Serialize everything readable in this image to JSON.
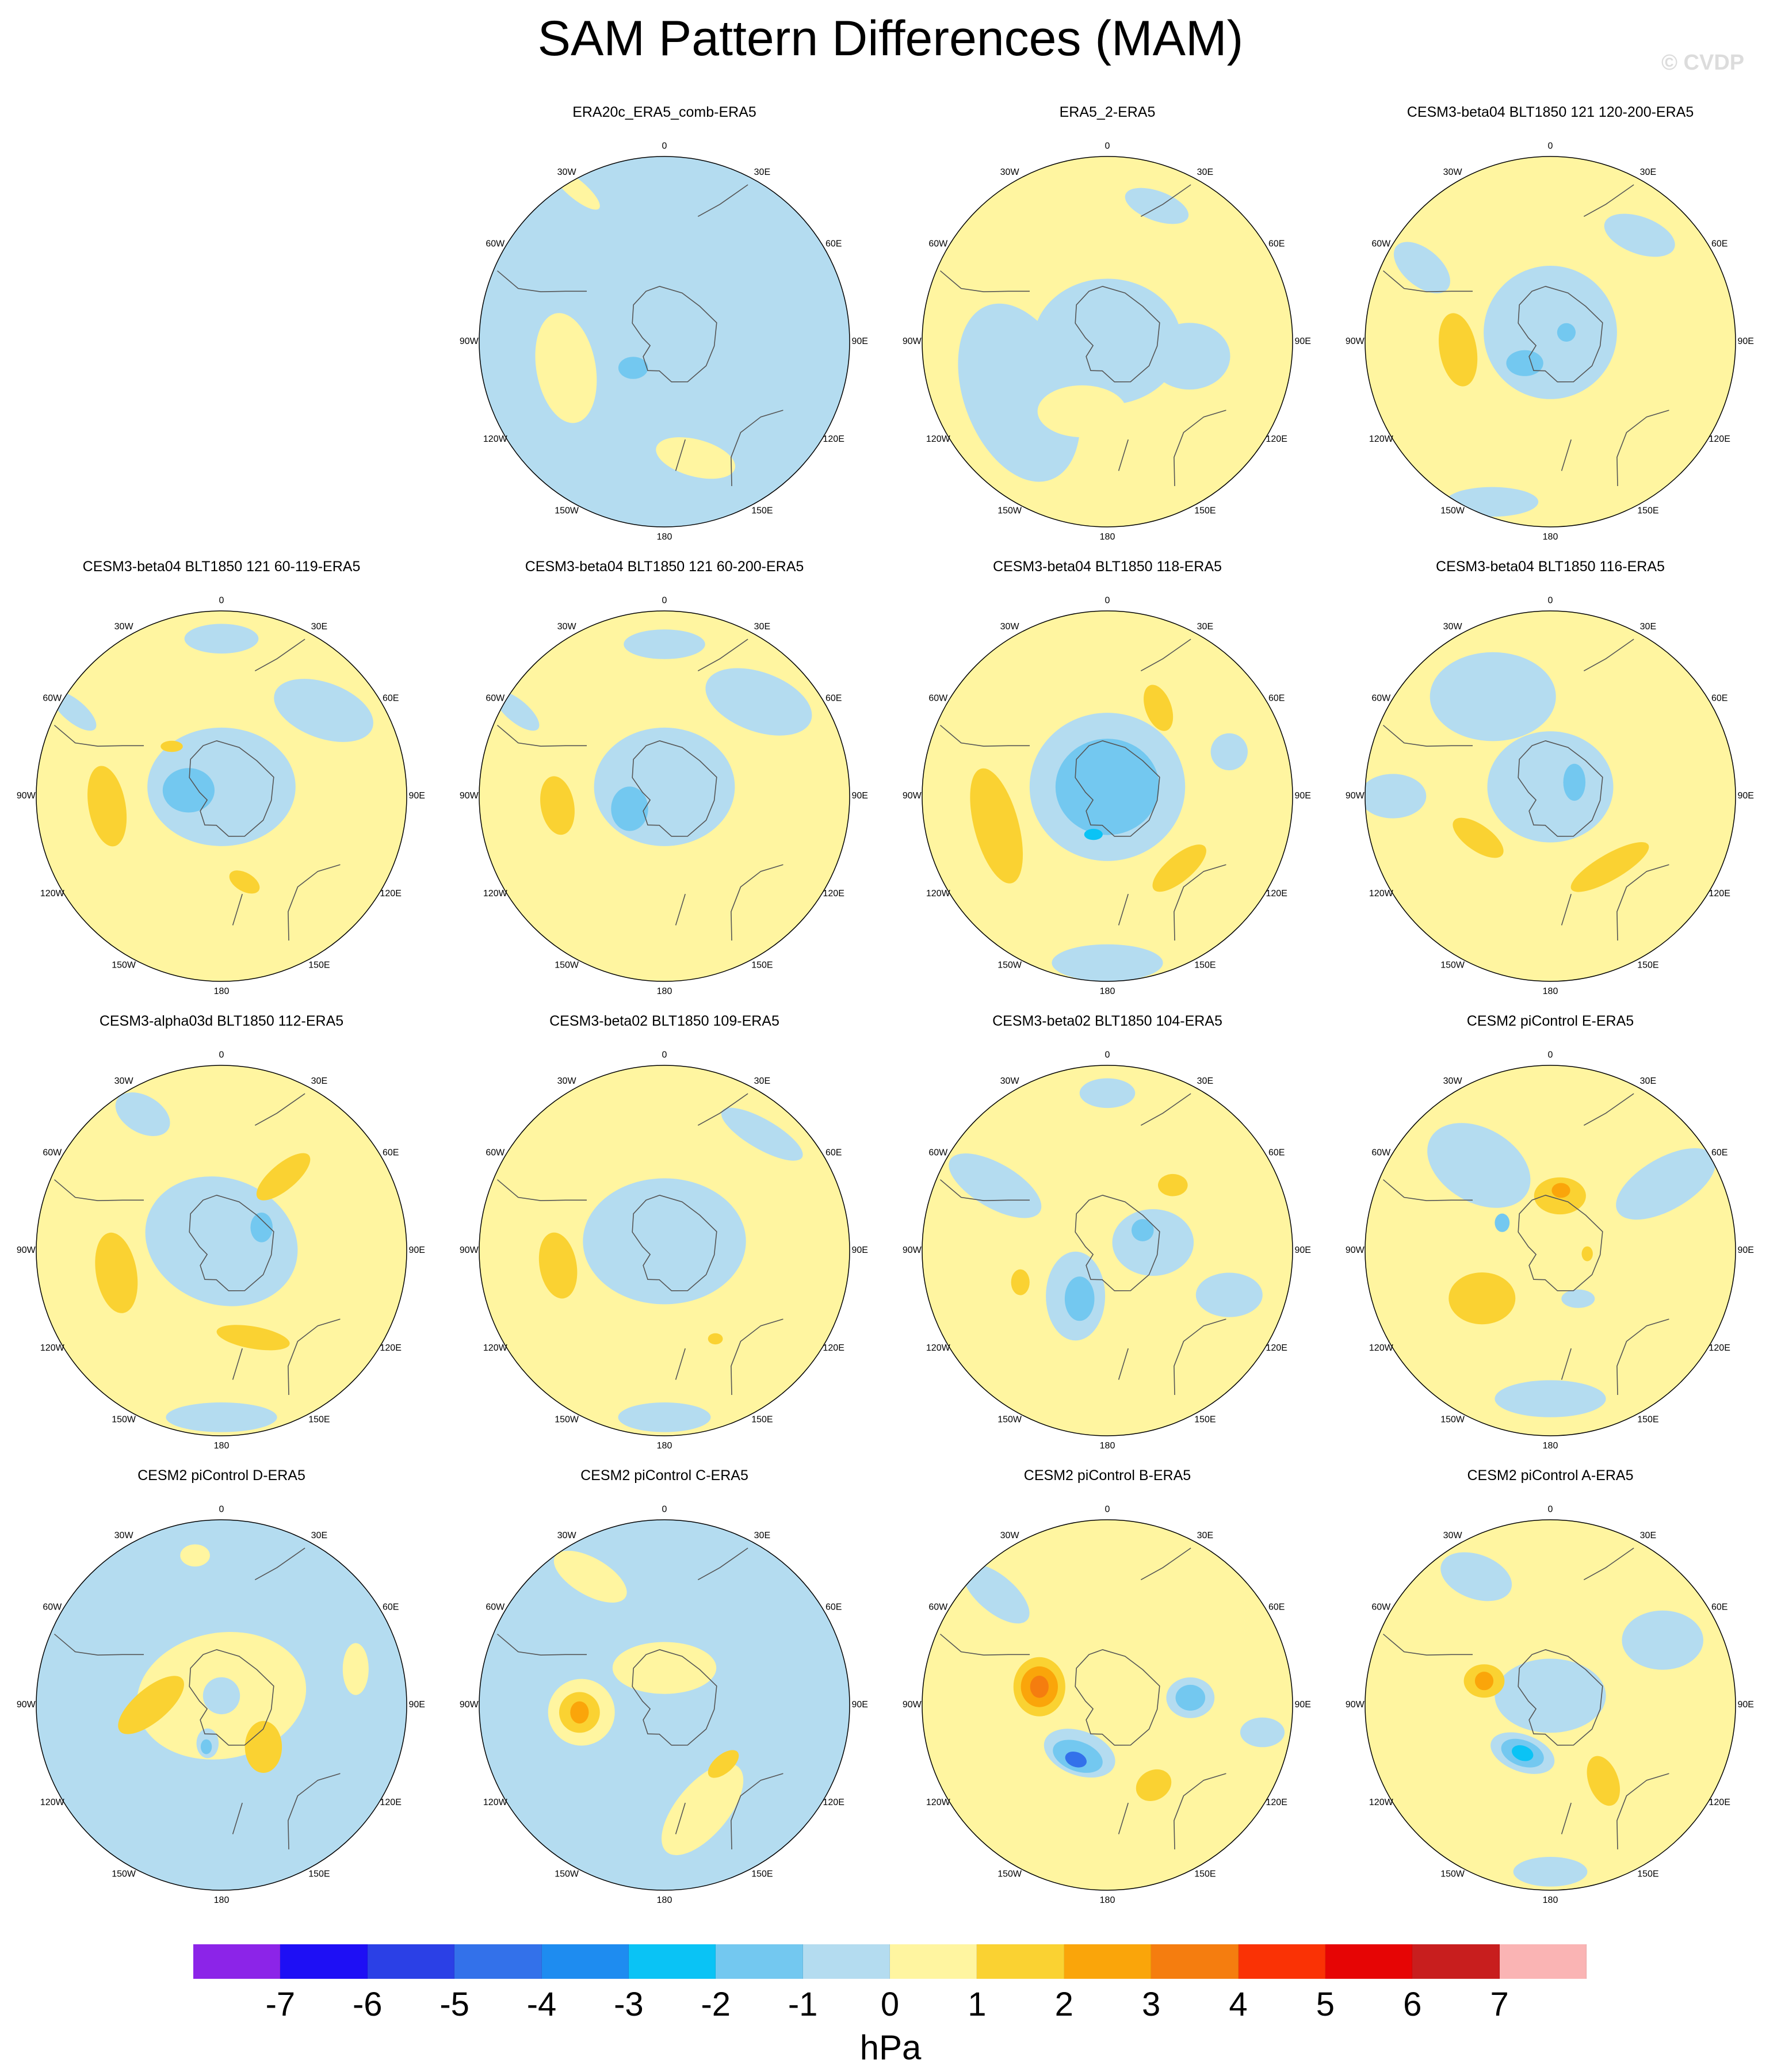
{
  "title": "SAM Pattern Differences (MAM)",
  "watermark": "© CVDP",
  "units": "hPa",
  "longitude_labels": [
    "0",
    "30E",
    "60E",
    "90E",
    "120E",
    "150E",
    "180",
    "150W",
    "120W",
    "90W",
    "60W",
    "30W"
  ],
  "colorbar": {
    "colors": [
      "#8C24E8",
      "#1E0FF5",
      "#2B40E6",
      "#3371EA",
      "#1E8CF0",
      "#0AC3F5",
      "#73C8F0",
      "#B4DCF0",
      "#FFF5A0",
      "#FAD232",
      "#FAA50A",
      "#F57D0F",
      "#FA3205",
      "#E60505",
      "#C81E1E",
      "#FAB4B4"
    ],
    "ticks": [
      "-7",
      "-6",
      "-5",
      "-4",
      "-3",
      "-2",
      "-1",
      "0",
      "1",
      "2",
      "3",
      "4",
      "5",
      "6",
      "7"
    ]
  },
  "panels": [
    {
      "row": 0,
      "col": 1,
      "title": "ERA20c_ERA5_comb-ERA5",
      "background": "#B4DCF0",
      "blobs": [
        {
          "color": "#FFF5A0",
          "lon": 255,
          "r": 0.55,
          "a": 0.16,
          "b": 0.3,
          "rot": -10
        },
        {
          "color": "#FFF5A0",
          "lon": 165,
          "r": 0.65,
          "a": 0.22,
          "b": 0.1,
          "rot": 15
        },
        {
          "color": "#FFF5A0",
          "lon": 330,
          "r": 0.95,
          "a": 0.16,
          "b": 0.05,
          "rot": 40
        },
        {
          "color": "#73C8F0",
          "lon": 230,
          "r": 0.22,
          "a": 0.08,
          "b": 0.06,
          "rot": 0
        }
      ]
    },
    {
      "row": 0,
      "col": 2,
      "title": "ERA5_2-ERA5",
      "background": "#FFF5A0",
      "blobs": [
        {
          "color": "#B4DCF0",
          "lon": 0,
          "r": 0.0,
          "a": 0.4,
          "b": 0.34,
          "rot": 0
        },
        {
          "color": "#B4DCF0",
          "lon": 240,
          "r": 0.55,
          "a": 0.3,
          "b": 0.5,
          "rot": -20
        },
        {
          "color": "#B4DCF0",
          "lon": 100,
          "r": 0.45,
          "a": 0.22,
          "b": 0.18,
          "rot": 0
        },
        {
          "color": "#FFF5A0",
          "lon": 200,
          "r": 0.4,
          "a": 0.24,
          "b": 0.14,
          "rot": 0
        },
        {
          "color": "#B4DCF0",
          "lon": 20,
          "r": 0.78,
          "a": 0.18,
          "b": 0.08,
          "rot": 20
        }
      ]
    },
    {
      "row": 0,
      "col": 3,
      "title": "CESM3-beta04 BLT1850 121 120-200-ERA5",
      "background": "#FFF5A0",
      "blobs": [
        {
          "color": "#B4DCF0",
          "lon": 0,
          "r": 0.05,
          "a": 0.36,
          "b": 0.36,
          "rot": 0
        },
        {
          "color": "#73C8F0",
          "lon": 230,
          "r": 0.18,
          "a": 0.1,
          "b": 0.07,
          "rot": 0
        },
        {
          "color": "#73C8F0",
          "lon": 60,
          "r": 0.1,
          "a": 0.05,
          "b": 0.05,
          "rot": 0
        },
        {
          "color": "#FAD232",
          "lon": 265,
          "r": 0.5,
          "a": 0.1,
          "b": 0.2,
          "rot": -10
        },
        {
          "color": "#B4DCF0",
          "lon": 200,
          "r": 0.92,
          "a": 0.25,
          "b": 0.08,
          "rot": 0
        },
        {
          "color": "#B4DCF0",
          "lon": 40,
          "r": 0.75,
          "a": 0.2,
          "b": 0.1,
          "rot": 20
        },
        {
          "color": "#B4DCF0",
          "lon": 300,
          "r": 0.8,
          "a": 0.18,
          "b": 0.1,
          "rot": 40
        }
      ]
    },
    {
      "row": 1,
      "col": 0,
      "title": "CESM3-beta04 BLT1850 121 60-119-ERA5",
      "background": "#FFF5A0",
      "blobs": [
        {
          "color": "#B4DCF0",
          "lon": 0,
          "r": 0.05,
          "a": 0.4,
          "b": 0.32,
          "rot": 0
        },
        {
          "color": "#73C8F0",
          "lon": 280,
          "r": 0.18,
          "a": 0.14,
          "b": 0.12,
          "rot": 0
        },
        {
          "color": "#FAD232",
          "lon": 265,
          "r": 0.62,
          "a": 0.1,
          "b": 0.22,
          "rot": -10
        },
        {
          "color": "#FAD232",
          "lon": 165,
          "r": 0.48,
          "a": 0.09,
          "b": 0.05,
          "rot": 30
        },
        {
          "color": "#FAD232",
          "lon": 315,
          "r": 0.38,
          "a": 0.06,
          "b": 0.03,
          "rot": 0
        },
        {
          "color": "#B4DCF0",
          "lon": 50,
          "r": 0.72,
          "a": 0.28,
          "b": 0.15,
          "rot": 20
        },
        {
          "color": "#B4DCF0",
          "lon": 0,
          "r": 0.85,
          "a": 0.2,
          "b": 0.08,
          "rot": 0
        },
        {
          "color": "#B4DCF0",
          "lon": 300,
          "r": 0.92,
          "a": 0.15,
          "b": 0.06,
          "rot": 40
        }
      ]
    },
    {
      "row": 1,
      "col": 1,
      "title": "CESM3-beta04 BLT1850 121 60-200-ERA5",
      "background": "#FFF5A0",
      "blobs": [
        {
          "color": "#B4DCF0",
          "lon": 0,
          "r": 0.05,
          "a": 0.38,
          "b": 0.32,
          "rot": 0
        },
        {
          "color": "#73C8F0",
          "lon": 250,
          "r": 0.2,
          "a": 0.1,
          "b": 0.12,
          "rot": 0
        },
        {
          "color": "#FAD232",
          "lon": 265,
          "r": 0.58,
          "a": 0.09,
          "b": 0.16,
          "rot": -10
        },
        {
          "color": "#B4DCF0",
          "lon": 45,
          "r": 0.72,
          "a": 0.3,
          "b": 0.16,
          "rot": 20
        },
        {
          "color": "#B4DCF0",
          "lon": 0,
          "r": 0.82,
          "a": 0.22,
          "b": 0.08,
          "rot": 0
        },
        {
          "color": "#B4DCF0",
          "lon": 300,
          "r": 0.92,
          "a": 0.15,
          "b": 0.06,
          "rot": 40
        }
      ]
    },
    {
      "row": 1,
      "col": 2,
      "title": "CESM3-beta04 BLT1850 118-ERA5",
      "background": "#FFF5A0",
      "blobs": [
        {
          "color": "#B4DCF0",
          "lon": 0,
          "r": 0.05,
          "a": 0.42,
          "b": 0.4,
          "rot": 0
        },
        {
          "color": "#73C8F0",
          "lon": 0,
          "r": 0.05,
          "a": 0.28,
          "b": 0.26,
          "rot": 0
        },
        {
          "color": "#0AC3F5",
          "lon": 200,
          "r": 0.22,
          "a": 0.05,
          "b": 0.03,
          "rot": 0
        },
        {
          "color": "#FAD232",
          "lon": 255,
          "r": 0.62,
          "a": 0.12,
          "b": 0.32,
          "rot": -15
        },
        {
          "color": "#FAD232",
          "lon": 135,
          "r": 0.55,
          "a": 0.18,
          "b": 0.07,
          "rot": -40
        },
        {
          "color": "#FAD232",
          "lon": 30,
          "r": 0.55,
          "a": 0.07,
          "b": 0.13,
          "rot": -20
        },
        {
          "color": "#B4DCF0",
          "lon": 180,
          "r": 0.9,
          "a": 0.3,
          "b": 0.1,
          "rot": 0
        },
        {
          "color": "#B4DCF0",
          "lon": 70,
          "r": 0.7,
          "a": 0.1,
          "b": 0.1,
          "rot": 0
        }
      ]
    },
    {
      "row": 1,
      "col": 3,
      "title": "CESM3-beta04 BLT1850 116-ERA5",
      "background": "#FFF5A0",
      "blobs": [
        {
          "color": "#B4DCF0",
          "lon": 0,
          "r": 0.05,
          "a": 0.34,
          "b": 0.3,
          "rot": 0
        },
        {
          "color": "#73C8F0",
          "lon": 60,
          "r": 0.15,
          "a": 0.06,
          "b": 0.1,
          "rot": 0
        },
        {
          "color": "#FAD232",
          "lon": 240,
          "r": 0.45,
          "a": 0.16,
          "b": 0.07,
          "rot": 35
        },
        {
          "color": "#FAD232",
          "lon": 140,
          "r": 0.5,
          "a": 0.24,
          "b": 0.07,
          "rot": -30
        },
        {
          "color": "#B4DCF0",
          "lon": 330,
          "r": 0.62,
          "a": 0.34,
          "b": 0.24,
          "rot": 0
        },
        {
          "color": "#B4DCF0",
          "lon": 270,
          "r": 0.85,
          "a": 0.18,
          "b": 0.12,
          "rot": 0
        }
      ]
    },
    {
      "row": 2,
      "col": 0,
      "title": "CESM3-alpha03d BLT1850 112-ERA5",
      "background": "#FFF5A0",
      "blobs": [
        {
          "color": "#B4DCF0",
          "lon": 0,
          "r": 0.05,
          "a": 0.42,
          "b": 0.34,
          "rot": 20
        },
        {
          "color": "#73C8F0",
          "lon": 60,
          "r": 0.25,
          "a": 0.06,
          "b": 0.08,
          "rot": 0
        },
        {
          "color": "#FAD232",
          "lon": 258,
          "r": 0.58,
          "a": 0.11,
          "b": 0.22,
          "rot": -10
        },
        {
          "color": "#FAD232",
          "lon": 40,
          "r": 0.52,
          "a": 0.18,
          "b": 0.07,
          "rot": -40
        },
        {
          "color": "#FAD232",
          "lon": 160,
          "r": 0.5,
          "a": 0.2,
          "b": 0.06,
          "rot": 10
        },
        {
          "color": "#B4DCF0",
          "lon": 180,
          "r": 0.9,
          "a": 0.3,
          "b": 0.08,
          "rot": 0
        },
        {
          "color": "#B4DCF0",
          "lon": 330,
          "r": 0.85,
          "a": 0.16,
          "b": 0.1,
          "rot": 30
        }
      ]
    },
    {
      "row": 2,
      "col": 1,
      "title": "CESM3-beta02 BLT1850 109-ERA5",
      "background": "#FFF5A0",
      "blobs": [
        {
          "color": "#B4DCF0",
          "lon": 0,
          "r": 0.05,
          "a": 0.44,
          "b": 0.34,
          "rot": 0
        },
        {
          "color": "#FAD232",
          "lon": 262,
          "r": 0.58,
          "a": 0.1,
          "b": 0.18,
          "rot": -10
        },
        {
          "color": "#FAD232",
          "lon": 150,
          "r": 0.55,
          "a": 0.04,
          "b": 0.03,
          "rot": 0
        },
        {
          "color": "#B4DCF0",
          "lon": 40,
          "r": 0.82,
          "a": 0.25,
          "b": 0.08,
          "rot": 30
        },
        {
          "color": "#B4DCF0",
          "lon": 180,
          "r": 0.9,
          "a": 0.25,
          "b": 0.08,
          "rot": 0
        }
      ]
    },
    {
      "row": 2,
      "col": 2,
      "title": "CESM3-beta02 BLT1850 104-ERA5",
      "background": "#FFF5A0",
      "blobs": [
        {
          "color": "#B4DCF0",
          "lon": 80,
          "r": 0.25,
          "a": 0.22,
          "b": 0.18,
          "rot": 0
        },
        {
          "color": "#B4DCF0",
          "lon": 215,
          "r": 0.3,
          "a": 0.16,
          "b": 0.24,
          "rot": 0
        },
        {
          "color": "#73C8F0",
          "lon": 210,
          "r": 0.3,
          "a": 0.08,
          "b": 0.12,
          "rot": 0
        },
        {
          "color": "#73C8F0",
          "lon": 60,
          "r": 0.22,
          "a": 0.06,
          "b": 0.06,
          "rot": 0
        },
        {
          "color": "#FAD232",
          "lon": 45,
          "r": 0.5,
          "a": 0.08,
          "b": 0.06,
          "rot": 0
        },
        {
          "color": "#FAD232",
          "lon": 250,
          "r": 0.5,
          "a": 0.05,
          "b": 0.07,
          "rot": 0
        },
        {
          "color": "#B4DCF0",
          "lon": 300,
          "r": 0.7,
          "a": 0.28,
          "b": 0.12,
          "rot": 30
        },
        {
          "color": "#B4DCF0",
          "lon": 110,
          "r": 0.7,
          "a": 0.18,
          "b": 0.12,
          "rot": 0
        },
        {
          "color": "#B4DCF0",
          "lon": 0,
          "r": 0.85,
          "a": 0.15,
          "b": 0.08,
          "rot": 0
        }
      ]
    },
    {
      "row": 2,
      "col": 3,
      "title": "CESM2 piControl E-ERA5",
      "background": "#FFF5A0",
      "blobs": [
        {
          "color": "#B4DCF0",
          "lon": 320,
          "r": 0.6,
          "a": 0.3,
          "b": 0.2,
          "rot": 30
        },
        {
          "color": "#B4DCF0",
          "lon": 60,
          "r": 0.72,
          "a": 0.3,
          "b": 0.14,
          "rot": -30
        },
        {
          "color": "#B4DCF0",
          "lon": 180,
          "r": 0.8,
          "a": 0.3,
          "b": 0.1,
          "rot": 0
        },
        {
          "color": "#B4DCF0",
          "lon": 150,
          "r": 0.3,
          "a": 0.09,
          "b": 0.05,
          "rot": 0
        },
        {
          "color": "#73C8F0",
          "lon": 300,
          "r": 0.3,
          "a": 0.04,
          "b": 0.05,
          "rot": 0
        },
        {
          "color": "#FAD232",
          "lon": 10,
          "r": 0.3,
          "a": 0.14,
          "b": 0.1,
          "rot": 0
        },
        {
          "color": "#FAA50A",
          "lon": 10,
          "r": 0.33,
          "a": 0.05,
          "b": 0.04,
          "rot": 0
        },
        {
          "color": "#FAD232",
          "lon": 235,
          "r": 0.45,
          "a": 0.18,
          "b": 0.14,
          "rot": 0
        },
        {
          "color": "#FAD232",
          "lon": 95,
          "r": 0.2,
          "a": 0.03,
          "b": 0.04,
          "rot": 0
        }
      ]
    },
    {
      "row": 3,
      "col": 0,
      "title": "CESM2 piControl D-ERA5",
      "background": "#B4DCF0",
      "blobs": [
        {
          "color": "#FFF5A0",
          "lon": 0,
          "r": 0.05,
          "a": 0.46,
          "b": 0.34,
          "rot": -10
        },
        {
          "color": "#FFF5A0",
          "lon": 350,
          "r": 0.82,
          "a": 0.08,
          "b": 0.06,
          "rot": 0
        },
        {
          "color": "#FFF5A0",
          "lon": 75,
          "r": 0.75,
          "a": 0.07,
          "b": 0.14,
          "rot": 0
        },
        {
          "color": "#FAD232",
          "lon": 270,
          "r": 0.38,
          "a": 0.22,
          "b": 0.09,
          "rot": -40
        },
        {
          "color": "#FAD232",
          "lon": 135,
          "r": 0.32,
          "a": 0.1,
          "b": 0.14,
          "rot": 0
        },
        {
          "color": "#B4DCF0",
          "lon": 200,
          "r": 0.22,
          "a": 0.06,
          "b": 0.08,
          "rot": 0
        },
        {
          "color": "#73C8F0",
          "lon": 200,
          "r": 0.24,
          "a": 0.03,
          "b": 0.04,
          "rot": 0
        },
        {
          "color": "#B4DCF0",
          "lon": 0,
          "r": 0.05,
          "a": 0.1,
          "b": 0.1,
          "rot": 0
        }
      ]
    },
    {
      "row": 3,
      "col": 1,
      "title": "CESM2 piControl C-ERA5",
      "background": "#B4DCF0",
      "blobs": [
        {
          "color": "#FFF5A0",
          "lon": 0,
          "r": 0.2,
          "a": 0.28,
          "b": 0.14,
          "rot": 0
        },
        {
          "color": "#FFF5A0",
          "lon": 265,
          "r": 0.45,
          "a": 0.18,
          "b": 0.18,
          "rot": 0
        },
        {
          "color": "#FAD232",
          "lon": 265,
          "r": 0.46,
          "a": 0.11,
          "b": 0.11,
          "rot": 0
        },
        {
          "color": "#FAA50A",
          "lon": 265,
          "r": 0.46,
          "a": 0.05,
          "b": 0.06,
          "rot": 0
        },
        {
          "color": "#FFF5A0",
          "lon": 160,
          "r": 0.6,
          "a": 0.3,
          "b": 0.14,
          "rot": -50
        },
        {
          "color": "#FAD232",
          "lon": 135,
          "r": 0.45,
          "a": 0.1,
          "b": 0.05,
          "rot": -40
        },
        {
          "color": "#FFF5A0",
          "lon": 330,
          "r": 0.8,
          "a": 0.22,
          "b": 0.1,
          "rot": 30
        }
      ]
    },
    {
      "row": 3,
      "col": 2,
      "title": "CESM2 piControl B-ERA5",
      "background": "#FFF5A0",
      "blobs": [
        {
          "color": "#B4DCF0",
          "lon": 210,
          "r": 0.3,
          "a": 0.2,
          "b": 0.12,
          "rot": 20
        },
        {
          "color": "#73C8F0",
          "lon": 210,
          "r": 0.32,
          "a": 0.14,
          "b": 0.08,
          "rot": 20
        },
        {
          "color": "#3371EA",
          "lon": 210,
          "r": 0.34,
          "a": 0.06,
          "b": 0.04,
          "rot": 20
        },
        {
          "color": "#FAD232",
          "lon": 285,
          "r": 0.38,
          "a": 0.14,
          "b": 0.16,
          "rot": 0
        },
        {
          "color": "#FAA50A",
          "lon": 285,
          "r": 0.38,
          "a": 0.1,
          "b": 0.11,
          "rot": 0
        },
        {
          "color": "#F57D0F",
          "lon": 285,
          "r": 0.38,
          "a": 0.05,
          "b": 0.06,
          "rot": 0
        },
        {
          "color": "#B4DCF0",
          "lon": 85,
          "r": 0.45,
          "a": 0.13,
          "b": 0.11,
          "rot": 0
        },
        {
          "color": "#73C8F0",
          "lon": 85,
          "r": 0.45,
          "a": 0.08,
          "b": 0.07,
          "rot": 0
        },
        {
          "color": "#FAD232",
          "lon": 150,
          "r": 0.5,
          "a": 0.1,
          "b": 0.08,
          "rot": -30
        },
        {
          "color": "#B4DCF0",
          "lon": 315,
          "r": 0.85,
          "a": 0.22,
          "b": 0.1,
          "rot": 40
        },
        {
          "color": "#B4DCF0",
          "lon": 100,
          "r": 0.85,
          "a": 0.12,
          "b": 0.08,
          "rot": 0
        }
      ]
    },
    {
      "row": 3,
      "col": 3,
      "title": "CESM2 piControl A-ERA5",
      "background": "#FFF5A0",
      "blobs": [
        {
          "color": "#B4DCF0",
          "lon": 0,
          "r": 0.05,
          "a": 0.3,
          "b": 0.2,
          "rot": 0
        },
        {
          "color": "#B4DCF0",
          "lon": 210,
          "r": 0.3,
          "a": 0.18,
          "b": 0.1,
          "rot": 20
        },
        {
          "color": "#73C8F0",
          "lon": 210,
          "r": 0.3,
          "a": 0.12,
          "b": 0.07,
          "rot": 20
        },
        {
          "color": "#0AC3F5",
          "lon": 210,
          "r": 0.3,
          "a": 0.06,
          "b": 0.04,
          "rot": 20
        },
        {
          "color": "#FAD232",
          "lon": 290,
          "r": 0.38,
          "a": 0.11,
          "b": 0.09,
          "rot": 0
        },
        {
          "color": "#FAA50A",
          "lon": 290,
          "r": 0.38,
          "a": 0.05,
          "b": 0.05,
          "rot": 0
        },
        {
          "color": "#FAD232",
          "lon": 145,
          "r": 0.5,
          "a": 0.08,
          "b": 0.14,
          "rot": -20
        },
        {
          "color": "#B4DCF0",
          "lon": 330,
          "r": 0.8,
          "a": 0.2,
          "b": 0.12,
          "rot": 20
        },
        {
          "color": "#B4DCF0",
          "lon": 60,
          "r": 0.7,
          "a": 0.22,
          "b": 0.16,
          "rot": 0
        },
        {
          "color": "#B4DCF0",
          "lon": 180,
          "r": 0.9,
          "a": 0.2,
          "b": 0.08,
          "rot": 0
        }
      ]
    }
  ]
}
